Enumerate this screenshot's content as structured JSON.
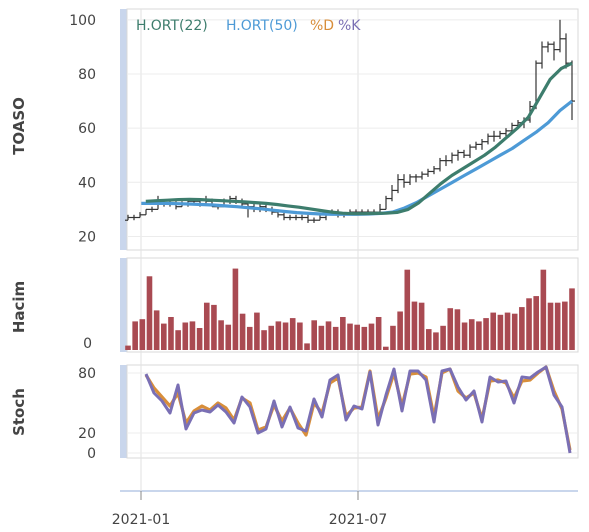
{
  "chart_data": [
    {
      "type": "ohlc",
      "ylabel": "TOASO",
      "yticks": [
        20,
        40,
        60,
        80,
        100
      ],
      "ylim": [
        15,
        104
      ],
      "legend": [
        {
          "label": "H.ORT(22)",
          "color": "#3d7d6d"
        },
        {
          "label": "H.ORT(50)",
          "color": "#4d9ad6"
        },
        {
          "label": "%D",
          "color": "#d88e3a"
        },
        {
          "label": "%K",
          "color": "#7a6fb4"
        }
      ],
      "ohlc": [
        {
          "o": 26,
          "h": 28,
          "l": 26,
          "c": 27
        },
        {
          "o": 27,
          "h": 28,
          "l": 26,
          "c": 27
        },
        {
          "o": 27,
          "h": 29,
          "l": 27,
          "c": 28
        },
        {
          "o": 28,
          "h": 30,
          "l": 28,
          "c": 30
        },
        {
          "o": 30,
          "h": 31,
          "l": 29,
          "c": 30
        },
        {
          "o": 30,
          "h": 35,
          "l": 30,
          "c": 32
        },
        {
          "o": 32,
          "h": 33,
          "l": 31,
          "c": 32
        },
        {
          "o": 32,
          "h": 33,
          "l": 31,
          "c": 32
        },
        {
          "o": 32,
          "h": 33,
          "l": 30,
          "c": 31
        },
        {
          "o": 31,
          "h": 33,
          "l": 31,
          "c": 32
        },
        {
          "o": 32,
          "h": 34,
          "l": 31,
          "c": 33
        },
        {
          "o": 33,
          "h": 34,
          "l": 32,
          "c": 33
        },
        {
          "o": 33,
          "h": 34,
          "l": 31,
          "c": 32
        },
        {
          "o": 32,
          "h": 35,
          "l": 32,
          "c": 33
        },
        {
          "o": 33,
          "h": 34,
          "l": 31,
          "c": 31
        },
        {
          "o": 31,
          "h": 32,
          "l": 30,
          "c": 31
        },
        {
          "o": 31,
          "h": 34,
          "l": 31,
          "c": 33
        },
        {
          "o": 33,
          "h": 35,
          "l": 32,
          "c": 34
        },
        {
          "o": 34,
          "h": 35,
          "l": 32,
          "c": 33
        },
        {
          "o": 33,
          "h": 34,
          "l": 31,
          "c": 32
        },
        {
          "o": 32,
          "h": 33,
          "l": 27,
          "c": 31
        },
        {
          "o": 31,
          "h": 32,
          "l": 29,
          "c": 30
        },
        {
          "o": 30,
          "h": 32,
          "l": 29,
          "c": 31
        },
        {
          "o": 31,
          "h": 32,
          "l": 29,
          "c": 30
        },
        {
          "o": 30,
          "h": 31,
          "l": 28,
          "c": 29
        },
        {
          "o": 29,
          "h": 30,
          "l": 27,
          "c": 28
        },
        {
          "o": 28,
          "h": 29,
          "l": 26,
          "c": 27
        },
        {
          "o": 27,
          "h": 28,
          "l": 26,
          "c": 27
        },
        {
          "o": 27,
          "h": 28,
          "l": 26,
          "c": 27
        },
        {
          "o": 27,
          "h": 28,
          "l": 26,
          "c": 27
        },
        {
          "o": 27,
          "h": 28,
          "l": 25,
          "c": 26
        },
        {
          "o": 26,
          "h": 27,
          "l": 25,
          "c": 26
        },
        {
          "o": 26,
          "h": 28,
          "l": 26,
          "c": 27
        },
        {
          "o": 27,
          "h": 28,
          "l": 26,
          "c": 28
        },
        {
          "o": 28,
          "h": 30,
          "l": 28,
          "c": 29
        },
        {
          "o": 29,
          "h": 30,
          "l": 27,
          "c": 28
        },
        {
          "o": 28,
          "h": 29,
          "l": 27,
          "c": 28
        },
        {
          "o": 28,
          "h": 30,
          "l": 28,
          "c": 29
        },
        {
          "o": 29,
          "h": 30,
          "l": 28,
          "c": 29
        },
        {
          "o": 29,
          "h": 30,
          "l": 28,
          "c": 29
        },
        {
          "o": 29,
          "h": 30,
          "l": 28,
          "c": 29
        },
        {
          "o": 29,
          "h": 30,
          "l": 28,
          "c": 29
        },
        {
          "o": 29,
          "h": 32,
          "l": 28,
          "c": 30
        },
        {
          "o": 30,
          "h": 35,
          "l": 30,
          "c": 34
        },
        {
          "o": 34,
          "h": 39,
          "l": 33,
          "c": 37
        },
        {
          "o": 37,
          "h": 43,
          "l": 36,
          "c": 41
        },
        {
          "o": 41,
          "h": 43,
          "l": 38,
          "c": 40
        },
        {
          "o": 40,
          "h": 43,
          "l": 39,
          "c": 42
        },
        {
          "o": 42,
          "h": 43,
          "l": 40,
          "c": 42
        },
        {
          "o": 42,
          "h": 44,
          "l": 41,
          "c": 43
        },
        {
          "o": 43,
          "h": 45,
          "l": 42,
          "c": 44
        },
        {
          "o": 44,
          "h": 46,
          "l": 43,
          "c": 45
        },
        {
          "o": 45,
          "h": 49,
          "l": 44,
          "c": 48
        },
        {
          "o": 48,
          "h": 50,
          "l": 46,
          "c": 48
        },
        {
          "o": 48,
          "h": 51,
          "l": 47,
          "c": 50
        },
        {
          "o": 50,
          "h": 52,
          "l": 48,
          "c": 51
        },
        {
          "o": 51,
          "h": 52,
          "l": 49,
          "c": 50
        },
        {
          "o": 50,
          "h": 54,
          "l": 49,
          "c": 53
        },
        {
          "o": 53,
          "h": 55,
          "l": 52,
          "c": 54
        },
        {
          "o": 54,
          "h": 56,
          "l": 52,
          "c": 55
        },
        {
          "o": 55,
          "h": 58,
          "l": 54,
          "c": 57
        },
        {
          "o": 57,
          "h": 59,
          "l": 55,
          "c": 57
        },
        {
          "o": 57,
          "h": 59,
          "l": 56,
          "c": 58
        },
        {
          "o": 58,
          "h": 60,
          "l": 57,
          "c": 59
        },
        {
          "o": 59,
          "h": 62,
          "l": 58,
          "c": 61
        },
        {
          "o": 61,
          "h": 63,
          "l": 60,
          "c": 62
        },
        {
          "o": 62,
          "h": 64,
          "l": 60,
          "c": 63
        },
        {
          "o": 63,
          "h": 70,
          "l": 62,
          "c": 68
        },
        {
          "o": 68,
          "h": 85,
          "l": 67,
          "c": 84
        },
        {
          "o": 84,
          "h": 92,
          "l": 82,
          "c": 90
        },
        {
          "o": 90,
          "h": 92,
          "l": 88,
          "c": 91
        },
        {
          "o": 91,
          "h": 92,
          "l": 85,
          "c": 89
        },
        {
          "o": 89,
          "h": 100,
          "l": 88,
          "c": 93
        },
        {
          "o": 93,
          "h": 95,
          "l": 82,
          "c": 84
        },
        {
          "o": 84,
          "h": 85,
          "l": 63,
          "c": 70
        }
      ],
      "ma22": [
        33,
        33.2,
        33.4,
        33.6,
        33.7,
        33.6,
        33.4,
        33.2,
        33,
        32.8,
        32.5,
        32.2,
        31.8,
        31.3,
        30.8,
        30.2,
        29.6,
        29,
        28.6,
        28.4,
        28.4,
        28.5,
        28.6,
        28.9,
        30,
        32.5,
        36,
        39.5,
        42.5,
        45,
        47.5,
        50,
        53,
        56.5,
        60,
        64,
        71,
        78,
        82,
        84
      ],
      "ma50": [
        32.2,
        32.2,
        32.2,
        32.1,
        32,
        31.8,
        31.6,
        31.3,
        31,
        30.6,
        30.2,
        29.7,
        29.2,
        28.8,
        28.5,
        28.3,
        28.2,
        28.2,
        28.2,
        28.3,
        28.5,
        29,
        30.5,
        32.5,
        35,
        37.5,
        40,
        42.5,
        45,
        47.5,
        50,
        52.5,
        55.5,
        58.5,
        62,
        66.5,
        70
      ],
      "ma_start": [
        0.34,
        0.04,
        0.4
      ]
    },
    {
      "type": "bar",
      "ylabel": "Hacim",
      "yticks": [
        0
      ],
      "color": "#a94a52",
      "values": [
        4,
        26,
        28,
        67,
        36,
        24,
        30,
        18,
        25,
        26,
        20,
        43,
        41,
        27,
        23,
        74,
        33,
        21,
        34,
        18,
        22,
        26,
        25,
        29,
        25,
        6,
        27,
        22,
        26,
        21,
        30,
        24,
        23,
        21,
        24,
        30,
        3,
        22,
        35,
        73,
        44,
        43,
        19,
        16,
        22,
        38,
        37,
        25,
        28,
        26,
        29,
        34,
        32,
        34,
        33,
        39,
        47,
        49,
        73,
        43,
        43,
        44,
        56
      ]
    },
    {
      "type": "line",
      "ylabel": "Stoch",
      "yticks": [
        0,
        20,
        80
      ],
      "ylim": [
        -5,
        88
      ],
      "series": [
        {
          "name": "%D",
          "color": "#d88e3a",
          "values": [
            78,
            65,
            56,
            47,
            60,
            30,
            42,
            47,
            43,
            50,
            45,
            33,
            55,
            50,
            23,
            26,
            48,
            32,
            45,
            30,
            18,
            50,
            40,
            70,
            75,
            37,
            45,
            46,
            82,
            34,
            55,
            80,
            47,
            79,
            80,
            76,
            36,
            80,
            84,
            62,
            55,
            60,
            34,
            72,
            73,
            70,
            55,
            72,
            73,
            80,
            86,
            62,
            44,
            3
          ]
        },
        {
          "name": "%K",
          "color": "#7a6fb4",
          "values": [
            79,
            60,
            52,
            40,
            68,
            24,
            40,
            43,
            41,
            48,
            41,
            30,
            56,
            46,
            20,
            24,
            52,
            26,
            46,
            25,
            22,
            54,
            36,
            73,
            78,
            33,
            47,
            44,
            81,
            28,
            58,
            84,
            42,
            82,
            82,
            73,
            31,
            82,
            84,
            66,
            53,
            62,
            31,
            76,
            71,
            72,
            50,
            76,
            75,
            81,
            86,
            58,
            46,
            0
          ]
        }
      ]
    }
  ],
  "x_axis": {
    "ticks": [
      "2021-01",
      "2021-07"
    ]
  }
}
